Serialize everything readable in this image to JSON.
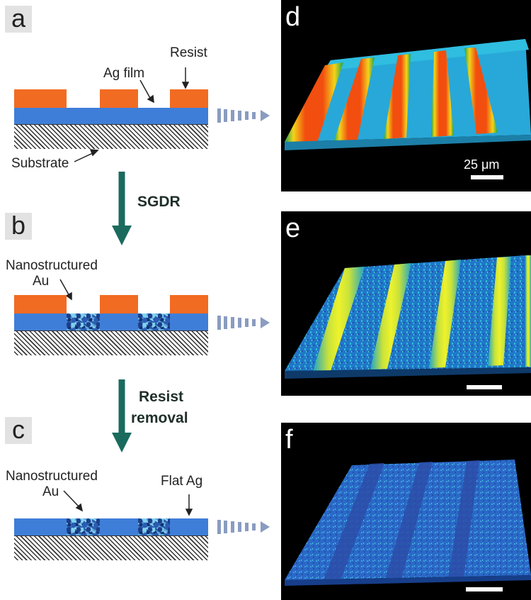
{
  "panels": {
    "a": "a",
    "b": "b",
    "c": "c",
    "d": "d",
    "e": "e",
    "f": "f"
  },
  "labels": {
    "ag_film": "Ag film",
    "resist": "Resist",
    "substrate": "Substrate",
    "nano_b": "Nanostructured",
    "au_b": "Au",
    "nano_c": "Nanostructured",
    "au_c": "Au",
    "flat_ag": "Flat Ag"
  },
  "steps": {
    "sgdr": "SGDR",
    "resist_removal_1": "Resist",
    "resist_removal_2": "removal"
  },
  "scale": {
    "label": "25 μm"
  },
  "colors": {
    "resist": "#f26b22",
    "ag_film": "#3f7ed8",
    "process_arrow": "#1a6b5e",
    "wave_arrow": "#8a9cc0",
    "image_background": "#000000"
  }
}
